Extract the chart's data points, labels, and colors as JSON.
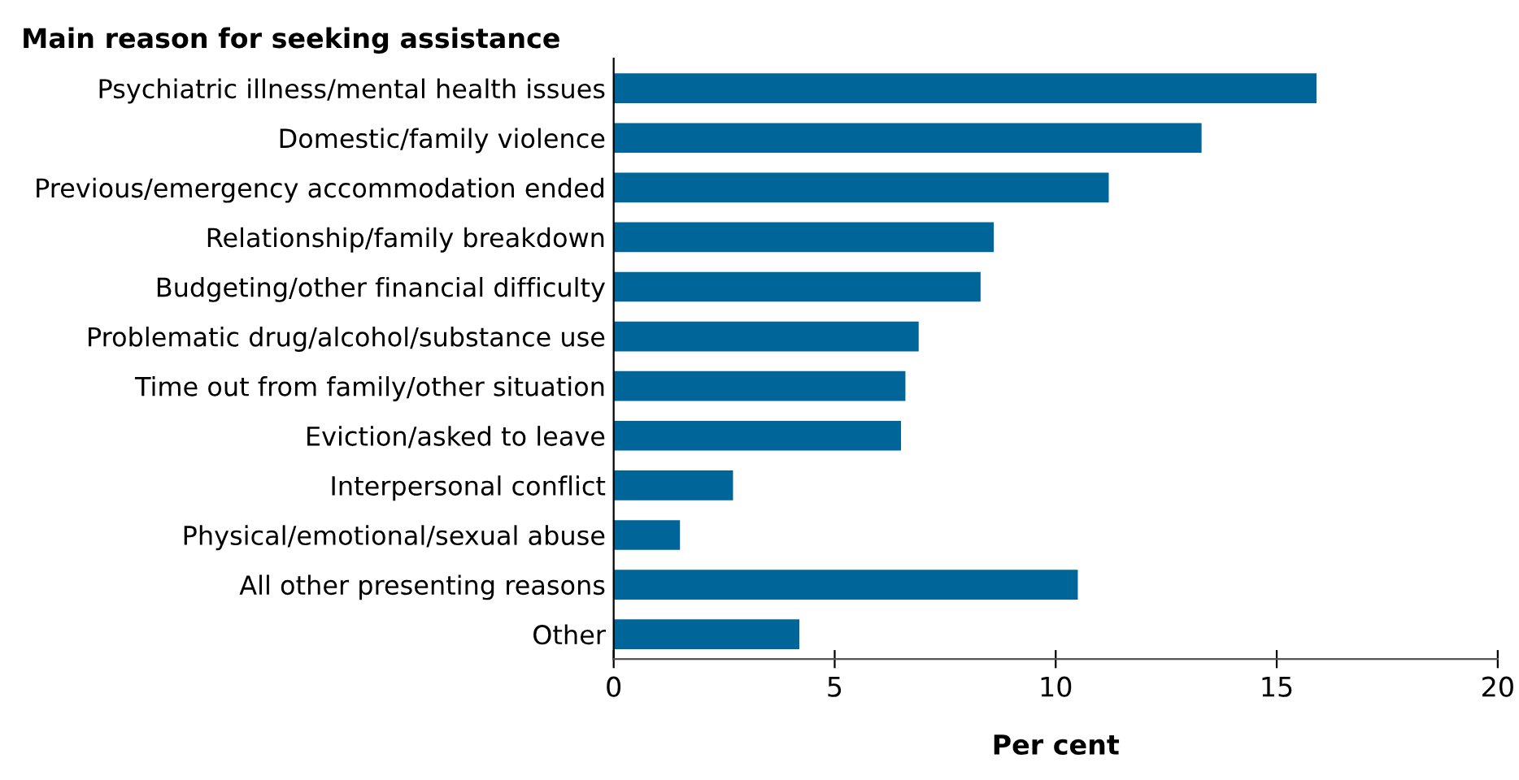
{
  "chart_data": {
    "type": "bar",
    "orientation": "horizontal",
    "title": "Main reason for seeking assistance",
    "xlabel": "Per cent",
    "categories": [
      "Psychiatric illness/mental health issues",
      "Domestic/family violence",
      "Previous/emergency accommodation ended",
      "Relationship/family breakdown",
      "Budgeting/other financial difficulty",
      "Problematic drug/alcohol/substance use",
      "Time out from family/other situation",
      "Eviction/asked to leave",
      "Interpersonal conflict",
      "Physical/emotional/sexual abuse",
      "All other presenting reasons",
      "Other"
    ],
    "values": [
      15.9,
      13.3,
      11.2,
      8.6,
      8.3,
      6.9,
      6.6,
      6.5,
      2.7,
      1.5,
      10.5,
      4.2
    ],
    "color": "#006699",
    "xlim": [
      0,
      20
    ],
    "xticks": [
      0,
      5,
      10,
      15,
      20
    ],
    "grid": false,
    "legend": false
  }
}
